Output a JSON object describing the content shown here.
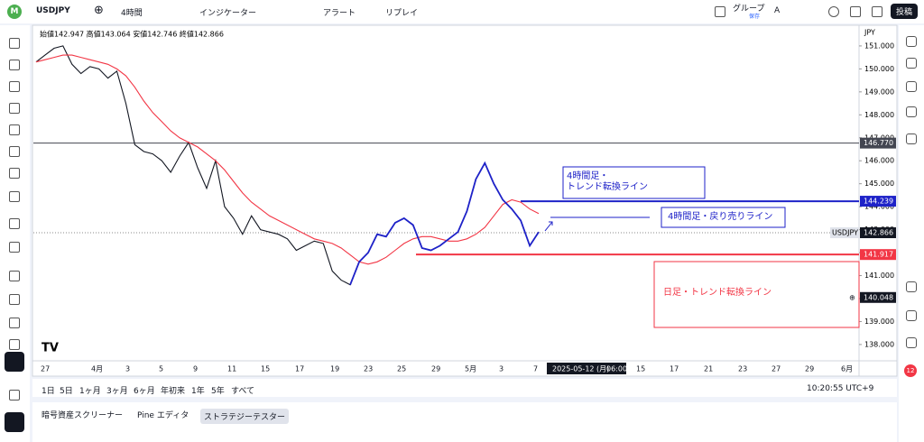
{
  "toolbar": {
    "avatar": "M",
    "symbol": "USDJPY",
    "interval": "4時間",
    "indicators": "インジケーター",
    "alert": "アラート",
    "replay": "リプレイ",
    "group": "グループ",
    "group_sub": "保存",
    "group_letter": "A",
    "publish": "投稿"
  },
  "chart_data": {
    "type": "line",
    "ohlc": "始値142.947 高値143.064 安値142.746 終値142.866",
    "currency": "JPY",
    "ylim": [
      137.29,
      151.9
    ],
    "yticks": [
      {
        "value": 138,
        "label": "138.000"
      },
      {
        "value": 139,
        "label": "139.000"
      },
      {
        "value": 140,
        "label": "140.000"
      },
      {
        "value": 141,
        "label": "141.000"
      },
      {
        "value": 142,
        "label": "142.000"
      },
      {
        "value": 143,
        "label": "143.000"
      },
      {
        "value": 144,
        "label": "144.000"
      },
      {
        "value": 145,
        "label": "145.000"
      },
      {
        "value": 146,
        "label": "146.000"
      },
      {
        "value": 147,
        "label": "147.000"
      },
      {
        "value": 148,
        "label": "148.000"
      },
      {
        "value": 149,
        "label": "149.000"
      },
      {
        "value": 150,
        "label": "150.000"
      },
      {
        "value": 151,
        "label": "151.000"
      }
    ],
    "xtick_labels": [
      "27",
      "4月",
      "3",
      "5",
      "9",
      "11",
      "15",
      "17",
      "19",
      "23",
      "25",
      "29",
      "5月",
      "3",
      "7",
      "2025-05-12 (月)",
      "06:00",
      "15",
      "17",
      "21",
      "23",
      "27",
      "29",
      "6月"
    ],
    "series": [
      {
        "color": "#131722",
        "values": [
          150.3,
          150.6,
          150.9,
          151.0,
          150.2,
          149.8,
          150.1,
          150.0,
          149.6,
          149.9,
          148.5,
          146.7,
          146.4,
          146.3,
          146.0,
          145.5,
          146.2,
          146.8,
          145.7,
          144.8,
          146.0,
          144.0,
          143.5,
          142.8,
          143.6,
          143.0,
          142.9,
          142.8,
          142.6,
          142.1,
          142.3,
          142.5,
          142.4,
          141.2,
          140.8,
          140.6,
          141.6,
          142.0,
          142.8,
          142.7,
          143.3,
          143.5,
          143.2,
          142.2,
          142.1,
          142.3,
          142.6,
          142.9,
          143.8,
          145.2,
          145.9,
          145.0,
          144.3,
          143.9,
          143.4,
          142.3,
          142.9
        ]
      },
      {
        "color": "#f23645",
        "values": [
          150.3,
          150.4,
          150.5,
          150.6,
          150.6,
          150.5,
          150.4,
          150.3,
          150.2,
          150.0,
          149.7,
          149.2,
          148.6,
          148.1,
          147.7,
          147.3,
          147.0,
          146.8,
          146.6,
          146.3,
          146.0,
          145.6,
          145.1,
          144.6,
          144.2,
          143.9,
          143.6,
          143.4,
          143.2,
          143.0,
          142.8,
          142.6,
          142.5,
          142.4,
          142.2,
          141.9,
          141.6,
          141.5,
          141.6,
          141.8,
          142.1,
          142.4,
          142.6,
          142.7,
          142.7,
          142.6,
          142.5,
          142.5,
          142.6,
          142.8,
          143.1,
          143.6,
          144.1,
          144.3,
          144.2,
          143.9,
          143.7
        ]
      },
      {
        "color": "#1e22c8",
        "values": [
          null,
          null,
          null,
          null,
          null,
          null,
          null,
          null,
          null,
          null,
          null,
          null,
          null,
          null,
          null,
          null,
          null,
          null,
          null,
          null,
          null,
          null,
          null,
          null,
          null,
          null,
          null,
          null,
          null,
          null,
          null,
          null,
          null,
          null,
          null,
          140.6,
          141.6,
          142.0,
          142.8,
          142.7,
          143.3,
          143.5,
          143.2,
          142.2,
          142.1,
          142.3,
          142.6,
          142.9,
          143.8,
          145.2,
          145.9,
          145.0,
          144.3,
          143.9,
          143.4,
          142.3,
          142.9
        ]
      }
    ],
    "hlines": [
      {
        "value": 146.77,
        "label": "146.770",
        "color": "#434651"
      },
      {
        "value": 144.239,
        "label": "144.239",
        "color": "#1e22c8"
      },
      {
        "value": 141.917,
        "label": "141.917",
        "color": "#f23645"
      }
    ],
    "current": {
      "value": 142.866,
      "label": "142.866",
      "symbol": "USDJPY"
    },
    "crosshair": {
      "value": 140.048,
      "label": "140.048"
    },
    "annotations": [
      {
        "lines": [
          "4時間足・",
          "トレンド転換ライン"
        ],
        "color": "#1e22c8"
      },
      {
        "lines": [
          "4時間足・戻り売りライン"
        ],
        "color": "#1e22c8"
      },
      {
        "lines": [
          "日足・トレンド転換ライン"
        ],
        "color": "#f23645"
      }
    ]
  },
  "ranges": [
    "1日",
    "5日",
    "1ヶ月",
    "3ヶ月",
    "6ヶ月",
    "年初来",
    "1年",
    "5年",
    "すべて"
  ],
  "clock": "10:20:55 UTC+9",
  "panel_tabs": [
    "暗号資産スクリーナー",
    "Pine エディタ",
    "ストラテジーテスター"
  ],
  "badge": "12"
}
